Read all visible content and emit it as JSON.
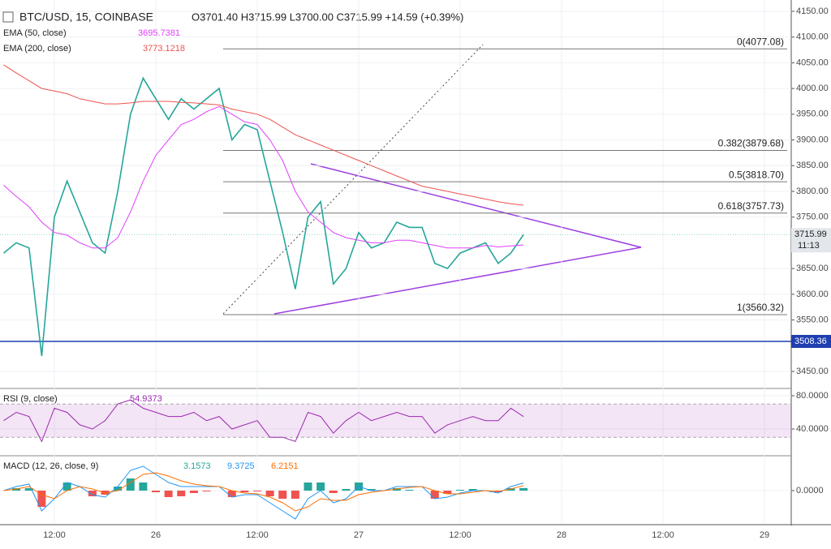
{
  "chart_data": [
    {
      "type": "line",
      "title": "BTC/USD, 15, COINBASE",
      "subtitle": "O3701.40 H3715.99 L3700.00 C3715.99 +14.59 (+0.39%)",
      "categories": [
        "",
        null,
        null,
        null,
        "12:00",
        null,
        null,
        null,
        null,
        null,
        null,
        null,
        "26",
        null,
        null,
        null,
        null,
        null,
        null,
        null,
        "12:00",
        null,
        null,
        null,
        null,
        null,
        null,
        null,
        "27",
        null,
        null,
        null,
        null,
        null,
        null,
        null,
        "12:00",
        null,
        null,
        null,
        null,
        null,
        null,
        null,
        "28",
        null,
        null,
        null,
        null,
        null,
        null,
        null,
        "12:00",
        null,
        null,
        null,
        null,
        null,
        null,
        null,
        "29"
      ],
      "ylim": [
        3418.5,
        4172
      ],
      "yticks": [
        {
          "value": 3450,
          "label": "3450.00"
        },
        {
          "value": 3550,
          "label": "3550.00"
        },
        {
          "value": 3600,
          "label": "3600.00"
        },
        {
          "value": 3650,
          "label": "3650.00"
        },
        {
          "value": 3750,
          "label": "3750.00"
        },
        {
          "value": 3800,
          "label": "3800.00"
        },
        {
          "value": 3850,
          "label": "3850.00"
        },
        {
          "value": 3900,
          "label": "3900.00"
        },
        {
          "value": 3950,
          "label": "3950.00"
        },
        {
          "value": 4000,
          "label": "4000.00"
        },
        {
          "value": 4050,
          "label": "4050.00"
        },
        {
          "value": 4100,
          "label": "4100.00"
        },
        {
          "value": 4150,
          "label": "4150.00"
        }
      ],
      "grid": true,
      "series": [
        {
          "color": "#26a69a",
          "values": [
            3680,
            3700,
            3690,
            3480,
            3750,
            3820,
            3760,
            3700,
            3680,
            3800,
            3950,
            4020,
            3980,
            3940,
            3980,
            3960,
            3980,
            4000,
            3900,
            3930,
            3920,
            3820,
            3720,
            3610,
            3750,
            3780,
            3620,
            3650,
            3720,
            3690,
            3700,
            3740,
            3730,
            3730,
            3660,
            3650,
            3680,
            3690,
            3700,
            3660,
            3680,
            3715.99,
            null,
            null,
            null,
            null,
            null,
            null,
            null,
            null,
            null,
            null,
            null,
            null,
            null,
            null,
            null,
            null,
            null,
            null,
            null
          ]
        },
        {
          "name": "EMA (50, close)",
          "color": "#e040fb",
          "last_value": 3695.7381,
          "values": [
            3812,
            3790,
            3770,
            3740,
            3720,
            3715,
            3700,
            3690,
            3690,
            3710,
            3760,
            3820,
            3870,
            3900,
            3930,
            3940,
            3955,
            3965,
            3950,
            3935,
            3930,
            3900,
            3860,
            3800,
            3760,
            3740,
            3720,
            3710,
            3705,
            3700,
            3700,
            3705,
            3705,
            3700,
            3695,
            3690,
            3690,
            3690,
            3695,
            3692,
            3694,
            3695.7381,
            null,
            null,
            null,
            null,
            null,
            null,
            null,
            null,
            null,
            null,
            null,
            null,
            null,
            null,
            null,
            null,
            null,
            null,
            null
          ]
        },
        {
          "name": "EMA (200, close)",
          "color": "#ef5350",
          "last_value": 3773.1218,
          "values": [
            4046,
            4030,
            4015,
            4000,
            3995,
            3990,
            3980,
            3975,
            3970,
            3970,
            3972,
            3975,
            3975,
            3975,
            3973,
            3972,
            3970,
            3968,
            3960,
            3955,
            3950,
            3940,
            3925,
            3910,
            3900,
            3890,
            3880,
            3870,
            3860,
            3850,
            3840,
            3830,
            3820,
            3810,
            3805,
            3800,
            3795,
            3790,
            3785,
            3780,
            3776,
            3773.1218,
            null,
            null,
            null,
            null,
            null,
            null,
            null,
            null,
            null,
            null,
            null,
            null,
            null,
            null,
            null,
            null,
            null,
            null,
            null
          ]
        }
      ],
      "fib_levels": [
        {
          "value": 4077.08,
          "label": "0(4077.08)"
        },
        {
          "value": 3879.68,
          "label": "0.382(3879.68)"
        },
        {
          "value": 3818.7,
          "label": "0.5(3818.70)"
        },
        {
          "value": 3757.73,
          "label": "0.618(3757.73)"
        },
        {
          "value": 3560.32,
          "label": "1(3560.32)"
        }
      ],
      "horizontal_line": {
        "value": 3508.36,
        "color": "#1f3fb0"
      },
      "last_price": 3715.99,
      "countdown": "11:13"
    },
    {
      "type": "line",
      "title": "RSI (9, close)",
      "ylim": [
        7.8,
        87.8
      ],
      "yticks": [
        {
          "value": 80,
          "label": "80.0000"
        },
        {
          "value": 40,
          "label": "40.0000"
        }
      ],
      "band": [
        30,
        70
      ],
      "series": [
        {
          "color": "#9c27b0",
          "last_value": 54.9373,
          "values": [
            50,
            60,
            55,
            25,
            65,
            60,
            45,
            40,
            50,
            70,
            75,
            65,
            60,
            55,
            55,
            60,
            50,
            55,
            40,
            45,
            50,
            30,
            30,
            25,
            60,
            55,
            35,
            50,
            60,
            50,
            55,
            60,
            55,
            55,
            35,
            45,
            50,
            55,
            50,
            50,
            65,
            54.9373,
            null,
            null,
            null,
            null,
            null,
            null,
            null,
            null,
            null,
            null,
            null,
            null,
            null,
            null,
            null,
            null,
            null,
            null,
            null
          ]
        }
      ]
    },
    {
      "type": "line",
      "title": "MACD (12, 26, close, 9)",
      "ylim": [
        -40,
        42
      ],
      "yticks": [
        {
          "value": 0,
          "label": "0.0000"
        }
      ],
      "series": [
        {
          "type": "bar",
          "color": "#26a69a",
          "negative_color": "#ef5350",
          "last_value": 3.1573,
          "values": [
            0,
            3,
            3,
            -20,
            0,
            10,
            0,
            -7,
            -5,
            5,
            15,
            10,
            -2,
            -8,
            -7,
            -3,
            -1,
            0,
            -8,
            -2,
            -1,
            -7,
            -10,
            -10,
            10,
            10,
            -3,
            2,
            10,
            2,
            0,
            3,
            1,
            0,
            -10,
            -4,
            1,
            2,
            0,
            -2,
            3,
            3.1573,
            null,
            null,
            null,
            null,
            null,
            null,
            null,
            null,
            null,
            null,
            null,
            null,
            null,
            null,
            null,
            null,
            null,
            null,
            null
          ]
        },
        {
          "color": "#2196f3",
          "last_value": 9.3725,
          "values": [
            0,
            5,
            8,
            -25,
            -10,
            10,
            5,
            -5,
            -8,
            5,
            25,
            30,
            20,
            10,
            5,
            5,
            5,
            5,
            -8,
            -5,
            -5,
            -15,
            -25,
            -35,
            -10,
            0,
            -15,
            -10,
            5,
            0,
            0,
            5,
            5,
            5,
            -10,
            -8,
            -3,
            0,
            0,
            -3,
            5,
            9.3725,
            null,
            null,
            null,
            null,
            null,
            null,
            null,
            null,
            null,
            null,
            null,
            null,
            null,
            null,
            null,
            null,
            null,
            null,
            null
          ]
        },
        {
          "color": "#ff6d00",
          "last_value": 6.2151,
          "values": [
            0,
            2,
            5,
            -5,
            -10,
            0,
            5,
            2,
            -3,
            0,
            10,
            20,
            22,
            18,
            12,
            8,
            6,
            5,
            0,
            -3,
            -4,
            -8,
            -15,
            -25,
            -20,
            -10,
            -12,
            -12,
            -5,
            -2,
            0,
            2,
            4,
            5,
            0,
            -4,
            -4,
            -2,
            0,
            -1,
            2,
            6.2151,
            null,
            null,
            null,
            null,
            null,
            null,
            null,
            null,
            null,
            null,
            null,
            null,
            null,
            null,
            null,
            null,
            null,
            null,
            null
          ]
        }
      ]
    }
  ]
}
